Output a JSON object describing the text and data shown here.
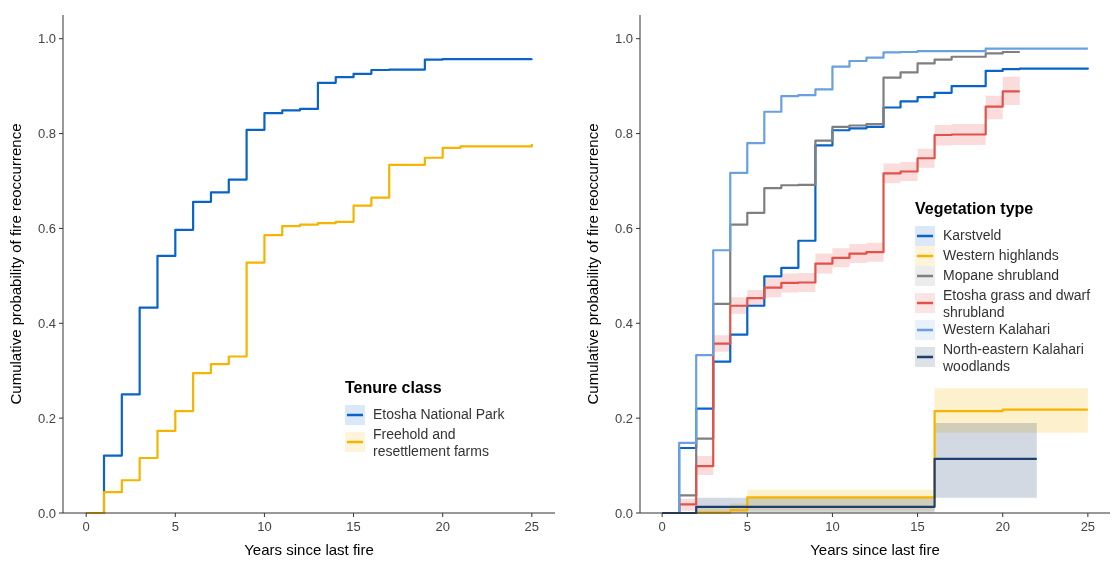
{
  "chart_data": [
    {
      "type": "step",
      "xlabel": "Years since last fire",
      "ylabel": "Cumulative probability of fire reoccurrence",
      "legend_title": "Tenure class",
      "legend": "bottom right",
      "xlim": [
        -1.3,
        26.3
      ],
      "ylim": [
        0,
        1.05
      ],
      "xticks": [
        0,
        5,
        10,
        15,
        20,
        25
      ],
      "yticks": [
        {
          "value": 0,
          "label": "0.0"
        },
        {
          "value": 0.2,
          "label": "0.2"
        },
        {
          "value": 0.4,
          "label": "0.4"
        },
        {
          "value": 0.6,
          "label": "0.6"
        },
        {
          "value": 0.8,
          "label": "0.8"
        },
        {
          "value": 1,
          "label": "1.0"
        }
      ],
      "grid": false,
      "series": [
        {
          "name": "Etosha National Park",
          "color": "#0a64c8",
          "x": [
            0,
            1,
            2,
            3,
            4,
            5,
            6,
            7,
            8,
            9,
            10,
            11,
            12,
            13,
            14,
            15,
            16,
            17,
            19,
            20,
            25
          ],
          "values": [
            0,
            0.121,
            0.25,
            0.433,
            0.542,
            0.597,
            0.656,
            0.676,
            0.703,
            0.808,
            0.843,
            0.849,
            0.852,
            0.907,
            0.919,
            0.926,
            0.934,
            0.935,
            0.956,
            0.957,
            0.958
          ]
        },
        {
          "name": "Freehold and resettlement farms",
          "color": "#f5b400",
          "x": [
            0,
            1,
            2,
            3,
            4,
            5,
            6,
            7,
            8,
            9,
            10,
            11,
            12,
            13,
            14,
            15,
            16,
            17,
            19,
            20,
            21,
            25
          ],
          "values": [
            0,
            0.044,
            0.069,
            0.116,
            0.173,
            0.215,
            0.295,
            0.314,
            0.33,
            0.528,
            0.586,
            0.605,
            0.608,
            0.611,
            0.614,
            0.648,
            0.665,
            0.734,
            0.749,
            0.77,
            0.773,
            0.778
          ]
        }
      ]
    },
    {
      "type": "step",
      "xlabel": "Years since last fire",
      "ylabel": "Cumulative probability of fire reoccurrence",
      "legend_title": "Vegetation type",
      "legend": "right",
      "xlim": [
        -1.3,
        26.3
      ],
      "ylim": [
        0,
        1.05
      ],
      "xticks": [
        0,
        5,
        10,
        15,
        20,
        25
      ],
      "yticks": [
        {
          "value": 0,
          "label": "0.0"
        },
        {
          "value": 0.2,
          "label": "0.2"
        },
        {
          "value": 0.4,
          "label": "0.4"
        },
        {
          "value": 0.6,
          "label": "0.6"
        },
        {
          "value": 0.8,
          "label": "0.8"
        },
        {
          "value": 1,
          "label": "1.0"
        }
      ],
      "grid": false,
      "series": [
        {
          "name": "Karstveld",
          "color": "#0a64c8",
          "x": [
            0,
            1,
            2,
            3,
            4,
            5,
            6,
            7,
            8,
            9,
            10,
            11,
            12,
            13,
            14,
            15,
            16,
            17,
            19,
            20,
            21,
            25
          ],
          "values": [
            0,
            0.137,
            0.22,
            0.319,
            0.376,
            0.437,
            0.499,
            0.517,
            0.574,
            0.775,
            0.807,
            0.811,
            0.814,
            0.855,
            0.868,
            0.877,
            0.886,
            0.9,
            0.932,
            0.936,
            0.937,
            0.939
          ]
        },
        {
          "name": "Western highlands",
          "color": "#f5b400",
          "x": [
            0,
            2,
            4,
            5,
            16,
            20,
            25
          ],
          "values": [
            0,
            0.001,
            0.006,
            0.033,
            0.215,
            0.218,
            0.218
          ],
          "lower": [
            0,
            0,
            0,
            0.005,
            0.169,
            0.169,
            0.169
          ],
          "upper": [
            0,
            0.01,
            0.02,
            0.049,
            0.263,
            0.263,
            0.263
          ]
        },
        {
          "name": "Mopane shrubland",
          "color": "#7f7f7f",
          "x": [
            0,
            1,
            2,
            3,
            4,
            5,
            6,
            7,
            8,
            9,
            10,
            11,
            12,
            13,
            14,
            15,
            16,
            17,
            19,
            20,
            21
          ],
          "values": [
            0,
            0.037,
            0.157,
            0.441,
            0.608,
            0.633,
            0.685,
            0.691,
            0.692,
            0.785,
            0.814,
            0.817,
            0.82,
            0.918,
            0.929,
            0.948,
            0.956,
            0.962,
            0.969,
            0.972,
            0.972
          ]
        },
        {
          "name": "Etosha grass and dwarf shrubland",
          "color": "#e0524a",
          "x": [
            0,
            1,
            2,
            3,
            4,
            5,
            6,
            7,
            8,
            9,
            10,
            11,
            12,
            13,
            14,
            15,
            16,
            17,
            19,
            20,
            21
          ],
          "values": [
            0,
            0.018,
            0.099,
            0.357,
            0.437,
            0.453,
            0.475,
            0.485,
            0.486,
            0.526,
            0.538,
            0.547,
            0.55,
            0.716,
            0.72,
            0.748,
            0.797,
            0.798,
            0.857,
            0.889,
            0.889
          ],
          "lower": [
            0,
            0.005,
            0.08,
            0.34,
            0.42,
            0.435,
            0.455,
            0.465,
            0.466,
            0.505,
            0.518,
            0.527,
            0.53,
            0.695,
            0.7,
            0.728,
            0.775,
            0.776,
            0.83,
            0.86,
            0.86
          ],
          "upper": [
            0,
            0.03,
            0.12,
            0.375,
            0.455,
            0.47,
            0.495,
            0.505,
            0.506,
            0.547,
            0.558,
            0.567,
            0.57,
            0.737,
            0.74,
            0.768,
            0.818,
            0.82,
            0.88,
            0.92,
            0.92
          ]
        },
        {
          "name": "Western Kalahari",
          "color": "#6a9fe0",
          "x": [
            0,
            1,
            2,
            3,
            4,
            5,
            6,
            7,
            8,
            9,
            10,
            11,
            12,
            13,
            14,
            15,
            19,
            25
          ],
          "values": [
            0,
            0.148,
            0.333,
            0.554,
            0.717,
            0.78,
            0.846,
            0.879,
            0.881,
            0.893,
            0.941,
            0.953,
            0.96,
            0.971,
            0.972,
            0.974,
            0.979,
            0.979
          ]
        },
        {
          "name": "North-eastern Kalahari woodlands",
          "color": "#1c3f6e",
          "x": [
            0,
            2,
            16,
            22
          ],
          "values": [
            0,
            0.013,
            0.114,
            0.114
          ],
          "lower": [
            0,
            0.001,
            0.032,
            0.032
          ],
          "upper": [
            0,
            0.032,
            0.19,
            0.19
          ]
        }
      ]
    }
  ]
}
